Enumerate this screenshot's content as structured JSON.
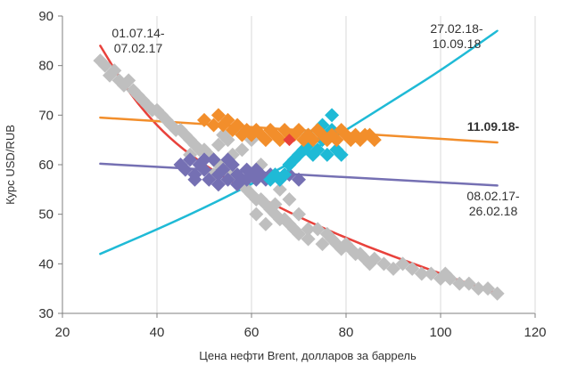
{
  "chart_data": {
    "type": "scatter",
    "xlabel": "Цена нефти Brent, долларов за баррель",
    "ylabel": "Курс USD/RUB",
    "xlim": [
      20,
      120
    ],
    "ylim": [
      30,
      90
    ],
    "x_ticks": [
      "20",
      "40",
      "60",
      "80",
      "100",
      "120"
    ],
    "y_ticks": [
      "30",
      "40",
      "50",
      "60",
      "70",
      "80",
      "90"
    ],
    "grid": "vertical",
    "legend": "none",
    "annotations": [
      {
        "lines": [
          "01.07.14-",
          "07.02.17"
        ],
        "bold": false
      },
      {
        "lines": [
          "27.02.18-",
          "10.09.18"
        ],
        "bold": false
      },
      {
        "lines": [
          "11.09.18-"
        ],
        "bold": true
      },
      {
        "lines": [
          "08.02.17-",
          "26.02.18"
        ],
        "bold": false
      }
    ],
    "series": [
      {
        "period": "01.07.14-07.02.17",
        "color": "#bfbfbf",
        "marker": "diamond",
        "points": [
          [
            28,
            81
          ],
          [
            29,
            80
          ],
          [
            30,
            78
          ],
          [
            31,
            79
          ],
          [
            32,
            77
          ],
          [
            33,
            76
          ],
          [
            34,
            77
          ],
          [
            35,
            75
          ],
          [
            36,
            74
          ],
          [
            37,
            73
          ],
          [
            38,
            72
          ],
          [
            39,
            71
          ],
          [
            40,
            71
          ],
          [
            41,
            70
          ],
          [
            42,
            69
          ],
          [
            43,
            68
          ],
          [
            44,
            67
          ],
          [
            45,
            67
          ],
          [
            46,
            66
          ],
          [
            47,
            65
          ],
          [
            48,
            64
          ],
          [
            49,
            63
          ],
          [
            50,
            63
          ],
          [
            51,
            62
          ],
          [
            52,
            61
          ],
          [
            53,
            60
          ],
          [
            54,
            60
          ],
          [
            55,
            59
          ],
          [
            56,
            58
          ],
          [
            57,
            57
          ],
          [
            58,
            56
          ],
          [
            59,
            55
          ],
          [
            60,
            54
          ],
          [
            61,
            53
          ],
          [
            62,
            53
          ],
          [
            63,
            52
          ],
          [
            64,
            51
          ],
          [
            65,
            50
          ],
          [
            66,
            49
          ],
          [
            67,
            49
          ],
          [
            68,
            48
          ],
          [
            69,
            47
          ],
          [
            70,
            46
          ],
          [
            72,
            45
          ],
          [
            74,
            47
          ],
          [
            75,
            44
          ],
          [
            76,
            46
          ],
          [
            77,
            45
          ],
          [
            78,
            44
          ],
          [
            79,
            43
          ],
          [
            80,
            44
          ],
          [
            81,
            43
          ],
          [
            82,
            42
          ],
          [
            83,
            42
          ],
          [
            84,
            41
          ],
          [
            85,
            40
          ],
          [
            86,
            41
          ],
          [
            88,
            40
          ],
          [
            90,
            39
          ],
          [
            92,
            40
          ],
          [
            94,
            39
          ],
          [
            96,
            38
          ],
          [
            98,
            38
          ],
          [
            100,
            37
          ],
          [
            101,
            38
          ],
          [
            102,
            37
          ],
          [
            104,
            36
          ],
          [
            106,
            36
          ],
          [
            108,
            35
          ],
          [
            110,
            35
          ],
          [
            112,
            34
          ],
          [
            47,
            62
          ],
          [
            52,
            58
          ],
          [
            56,
            62
          ],
          [
            60,
            58
          ],
          [
            62,
            60
          ],
          [
            64,
            57
          ],
          [
            66,
            55
          ],
          [
            68,
            53
          ],
          [
            58,
            63
          ],
          [
            55,
            65
          ],
          [
            53,
            64
          ],
          [
            61,
            50
          ],
          [
            63,
            48
          ],
          [
            65,
            52
          ],
          [
            70,
            50
          ],
          [
            72,
            47
          ],
          [
            60,
            65
          ],
          [
            57,
            67
          ],
          [
            54,
            66
          ]
        ]
      },
      {
        "period": "08.02.17-26.02.18",
        "color": "#7570b3",
        "marker": "diamond",
        "points": [
          [
            45,
            60
          ],
          [
            46,
            59
          ],
          [
            47,
            61
          ],
          [
            48,
            58
          ],
          [
            49,
            60
          ],
          [
            50,
            59
          ],
          [
            51,
            57
          ],
          [
            52,
            61
          ],
          [
            53,
            58
          ],
          [
            54,
            59
          ],
          [
            55,
            57
          ],
          [
            56,
            60
          ],
          [
            57,
            58
          ],
          [
            58,
            57
          ],
          [
            59,
            59
          ],
          [
            60,
            58
          ],
          [
            61,
            57
          ],
          [
            62,
            58
          ],
          [
            63,
            57
          ],
          [
            64,
            58
          ],
          [
            66,
            57
          ],
          [
            68,
            58
          ],
          [
            70,
            57
          ],
          [
            48,
            57
          ],
          [
            50,
            61
          ],
          [
            53,
            56
          ],
          [
            55,
            61
          ],
          [
            57,
            56
          ],
          [
            59,
            57
          ],
          [
            61,
            59
          ]
        ]
      },
      {
        "period": "27.02.18-10.09.18",
        "color": "#1fbad6",
        "marker": "diamond",
        "points": [
          [
            64,
            57
          ],
          [
            65,
            58
          ],
          [
            66,
            57
          ],
          [
            67,
            58
          ],
          [
            68,
            60
          ],
          [
            69,
            61
          ],
          [
            70,
            62
          ],
          [
            71,
            63
          ],
          [
            72,
            64
          ],
          [
            73,
            62
          ],
          [
            74,
            63
          ],
          [
            75,
            65
          ],
          [
            76,
            66
          ],
          [
            77,
            67
          ],
          [
            78,
            63
          ],
          [
            79,
            62
          ],
          [
            76,
            62
          ],
          [
            77,
            70
          ],
          [
            75,
            68
          ],
          [
            72,
            66
          ]
        ]
      },
      {
        "period": "11.09.18-",
        "color": "#f28e2b",
        "marker": "diamond",
        "points": [
          [
            50,
            69
          ],
          [
            52,
            68
          ],
          [
            53,
            70
          ],
          [
            54,
            68
          ],
          [
            55,
            69
          ],
          [
            56,
            67
          ],
          [
            57,
            68
          ],
          [
            58,
            66
          ],
          [
            59,
            67
          ],
          [
            60,
            66
          ],
          [
            61,
            67
          ],
          [
            62,
            66
          ],
          [
            63,
            65
          ],
          [
            64,
            67
          ],
          [
            65,
            66
          ],
          [
            66,
            65
          ],
          [
            67,
            67
          ],
          [
            68,
            66
          ],
          [
            69,
            66
          ],
          [
            70,
            67
          ],
          [
            71,
            65
          ],
          [
            72,
            66
          ],
          [
            73,
            65
          ],
          [
            74,
            67
          ],
          [
            75,
            66
          ],
          [
            76,
            65
          ],
          [
            77,
            66
          ],
          [
            78,
            65
          ],
          [
            79,
            67
          ],
          [
            80,
            66
          ],
          [
            81,
            65
          ],
          [
            82,
            66
          ],
          [
            83,
            65
          ],
          [
            84,
            66
          ],
          [
            85,
            66
          ],
          [
            86,
            65
          ]
        ]
      }
    ],
    "trendlines": [
      {
        "color": "#e8413b",
        "points": [
          [
            28,
            84
          ],
          [
            35,
            73
          ],
          [
            45,
            63
          ],
          [
            60,
            54
          ],
          [
            80,
            45
          ],
          [
            100,
            38
          ],
          [
            112,
            34
          ]
        ]
      },
      {
        "color": "#f28e2b",
        "points": [
          [
            28,
            69.5
          ],
          [
            112,
            64.5
          ]
        ]
      },
      {
        "color": "#7570b3",
        "points": [
          [
            28,
            60.2
          ],
          [
            112,
            55.8
          ]
        ]
      },
      {
        "color": "#1fbad6",
        "points": [
          [
            28,
            42
          ],
          [
            45,
            49
          ],
          [
            60,
            56
          ],
          [
            75,
            64
          ],
          [
            90,
            73
          ],
          [
            100,
            79
          ],
          [
            112,
            87
          ]
        ]
      }
    ],
    "highlight": {
      "color": "#e8413b",
      "point": [
        68,
        65
      ]
    }
  }
}
